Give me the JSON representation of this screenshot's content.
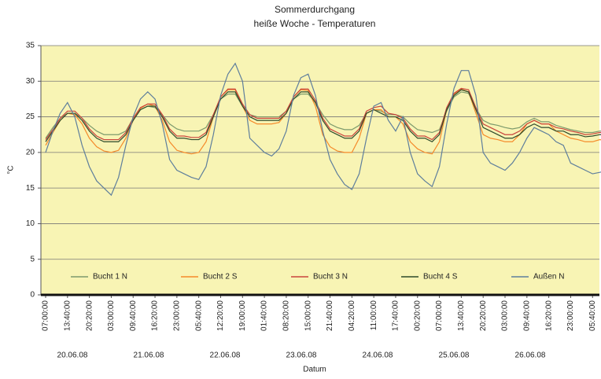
{
  "chart_data": {
    "type": "line",
    "title": "Sommerdurchgang",
    "subtitle": "heiße Woche - Temperaturen",
    "x_label": "Datum",
    "y_label": "°C",
    "categories": [
      "07:00:00",
      null,
      null,
      "13:40:00",
      null,
      null,
      "20:20:00",
      null,
      null,
      "03:00:00",
      null,
      null,
      "09:40:00",
      null,
      null,
      "16:20:00",
      null,
      null,
      "23:00:00",
      null,
      null,
      "05:40:00",
      null,
      null,
      "12:20:00",
      null,
      null,
      "19:00:00",
      null,
      null,
      "01:40:00",
      null,
      null,
      "08:20:00",
      null,
      null,
      "15:00:00",
      null,
      null,
      "21:40:00",
      null,
      null,
      "04:20:00",
      null,
      null,
      "11:00:00",
      null,
      null,
      "17:40:00",
      null,
      null,
      "00:20:00",
      null,
      null,
      "07:00:00",
      null,
      null,
      "13:40:00",
      null,
      null,
      "20:20:00",
      null,
      null,
      "03:00:00",
      null,
      null,
      "09:40:00",
      null,
      null,
      "16:20:00",
      null,
      null,
      "23:00:00",
      null,
      null,
      "05:40:00",
      null,
      null
    ],
    "dates": [
      "20.06.08",
      "21.06.08",
      "22.06.08",
      "23.06.08",
      "24.06.08",
      "25.06.08",
      "26.06.08"
    ],
    "series": [
      {
        "name": "Bucht 1 N",
        "color": "#7c9a6c",
        "values": [
          22,
          23.5,
          24.8,
          25.5,
          25.5,
          24.8,
          23.8,
          23,
          22.5,
          22.5,
          22.5,
          23,
          24.8,
          26,
          26.5,
          26.3,
          25.3,
          24,
          23.3,
          23,
          23,
          23,
          23.5,
          25.3,
          27.5,
          28.2,
          28.2,
          26.5,
          25.3,
          25,
          25,
          25,
          25,
          25.8,
          27.5,
          28.2,
          28.2,
          27,
          25.3,
          24,
          23.5,
          23.2,
          23.2,
          23.8,
          25.5,
          26,
          25.8,
          25.3,
          25.3,
          25,
          24,
          23.2,
          23,
          22.8,
          23.2,
          25.8,
          27.8,
          28.5,
          28.3,
          26.2,
          24.5,
          24,
          23.8,
          23.5,
          23.3,
          23.5,
          24.3,
          24.8,
          24.3,
          24.3,
          23.8,
          23.5,
          23.2,
          23,
          22.8,
          22.8,
          23,
          23
        ]
      },
      {
        "name": "Bucht 2 S",
        "color": "#f58a2a",
        "values": [
          21,
          22.8,
          24.5,
          25.5,
          25.3,
          24,
          22,
          20.8,
          20.2,
          20,
          20.3,
          22,
          24.5,
          26.2,
          26.8,
          26.5,
          24.5,
          21.5,
          20.3,
          20,
          19.8,
          20,
          21.5,
          25,
          27.8,
          28.8,
          28.8,
          26.5,
          24.5,
          24,
          24,
          24,
          24.2,
          25.5,
          27.8,
          28.8,
          28.7,
          26.5,
          22.5,
          20.8,
          20.2,
          20,
          20,
          22,
          25.5,
          26,
          26,
          25,
          25,
          24,
          21.5,
          20.5,
          20,
          19.8,
          21.5,
          26,
          28.2,
          28.9,
          28.5,
          25.5,
          22.5,
          22,
          21.8,
          21.5,
          21.5,
          22.5,
          24,
          24.5,
          24,
          24,
          23,
          22.5,
          22,
          21.8,
          21.5,
          21.5,
          21.8,
          21.6
        ]
      },
      {
        "name": "Bucht 3 N",
        "color": "#c9443c",
        "values": [
          21.8,
          23.2,
          24.8,
          25.8,
          25.8,
          24.8,
          23.3,
          22.3,
          21.8,
          21.8,
          21.8,
          22.8,
          24.8,
          26.3,
          26.8,
          26.8,
          25.3,
          23.3,
          22.3,
          22.3,
          22.1,
          22.1,
          22.8,
          25.3,
          27.8,
          28.9,
          28.9,
          26.8,
          25.3,
          24.8,
          24.8,
          24.8,
          24.8,
          25.8,
          27.8,
          28.9,
          28.9,
          27.3,
          24.8,
          23.3,
          22.8,
          22.3,
          22.3,
          23.3,
          25.8,
          26.3,
          26.5,
          25.5,
          25.3,
          24.8,
          23.3,
          22.3,
          22.3,
          21.8,
          22.8,
          26.3,
          28.3,
          29,
          28.8,
          26.3,
          24,
          23.5,
          23,
          22.5,
          22.5,
          23,
          24,
          24.5,
          24,
          24,
          23.5,
          23.3,
          23,
          22.8,
          22.5,
          22.6,
          22.8,
          22.8
        ]
      },
      {
        "name": "Bucht 4 S",
        "color": "#2e4a2a",
        "values": [
          21.5,
          23,
          24.5,
          25.5,
          25.5,
          24.5,
          23,
          22,
          21.5,
          21.5,
          21.5,
          22.5,
          24.5,
          26,
          26.5,
          26.5,
          25,
          23,
          22,
          22,
          21.8,
          21.8,
          22.5,
          25,
          27.5,
          28.5,
          28.5,
          26.5,
          25,
          24.5,
          24.5,
          24.5,
          24.5,
          25.5,
          27.5,
          28.5,
          28.5,
          27,
          24.5,
          23,
          22.5,
          22,
          22,
          23,
          25.5,
          26,
          25.5,
          25,
          25,
          24.5,
          23,
          22,
          22,
          21.5,
          22.5,
          26,
          28,
          28.8,
          28.5,
          26,
          23.5,
          23,
          22.5,
          22,
          22,
          22.5,
          23.5,
          24,
          23.5,
          23.5,
          23,
          23,
          22.5,
          22.5,
          22.2,
          22.3,
          22.5,
          22.5
        ]
      },
      {
        "name": "Außen N",
        "color": "#5e7e9c",
        "values": [
          20,
          23,
          25.5,
          27,
          25,
          21,
          18,
          16,
          15,
          14,
          16.5,
          21,
          25,
          27.5,
          28.5,
          27.5,
          24,
          19,
          17.5,
          17,
          16.5,
          16.2,
          18,
          22.5,
          28,
          31,
          32.5,
          30,
          22,
          21,
          20,
          19.5,
          20.5,
          23,
          28,
          30.5,
          31,
          28,
          23,
          19,
          17,
          15.5,
          14.8,
          17,
          22,
          26.5,
          27,
          24.5,
          23,
          25,
          20,
          17,
          16,
          15.2,
          18,
          24,
          29,
          31.5,
          31.5,
          28,
          20,
          18.5,
          18,
          17.5,
          18.5,
          20,
          22,
          23.5,
          23,
          22.5,
          21.5,
          21,
          18.5,
          18,
          17.5,
          17,
          17.2,
          17.5
        ]
      }
    ],
    "ylim": [
      0,
      35
    ],
    "yticks": [
      0,
      5,
      10,
      15,
      20,
      25,
      30,
      35
    ],
    "grid": true,
    "legend": "bottom"
  }
}
